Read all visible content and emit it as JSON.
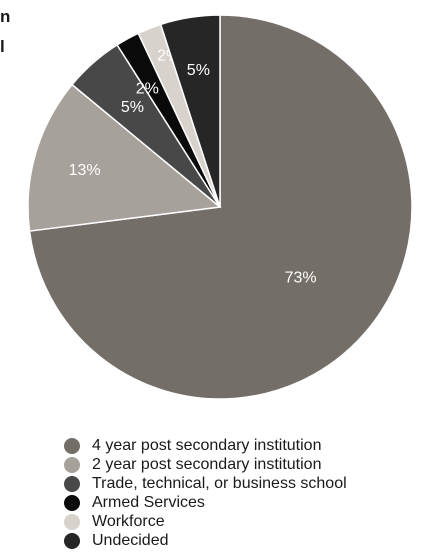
{
  "clipped_text": [
    "n",
    "l"
  ],
  "chart_data": {
    "type": "pie",
    "start_angle_deg": 0,
    "direction": "clockwise",
    "slices": [
      {
        "label": "4 year post secondary institution",
        "value": 73,
        "display": "73%",
        "color": "#746e68",
        "label_color": "#ffffff"
      },
      {
        "label": "2 year post secondary institution",
        "value": 13,
        "display": "13%",
        "color": "#a7a19b",
        "label_color": "#ffffff"
      },
      {
        "label": "Trade, technical, or business school",
        "value": 5,
        "display": "5%",
        "color": "#484848",
        "label_color": "#ffffff"
      },
      {
        "label": "Armed Services",
        "value": 2,
        "display": "2%",
        "color": "#0a0a0a",
        "label_color": "#ffffff"
      },
      {
        "label": "Workforce",
        "value": 2,
        "display": "2%",
        "color": "#d8d2cc",
        "label_color": "#ffffff"
      },
      {
        "label": "Undecided",
        "value": 5,
        "display": "5%",
        "color": "#262626",
        "label_color": "#ffffff"
      }
    ],
    "legend_position": "bottom"
  }
}
